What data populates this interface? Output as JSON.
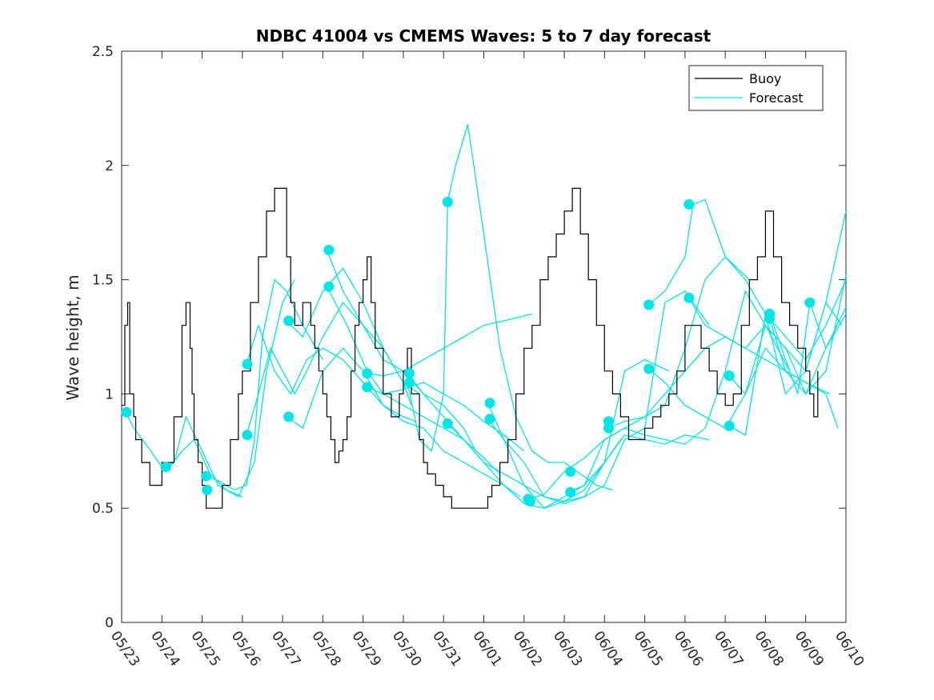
{
  "chart_data": {
    "type": "line",
    "title": "NDBC 41004 vs CMEMS Waves: 5 to 7 day forecast",
    "xlabel": "",
    "ylabel": "Wave height, m",
    "xlim": [
      0,
      18
    ],
    "ylim": [
      0,
      2.5
    ],
    "x_tick_labels": [
      "05/23",
      "05/24",
      "05/25",
      "05/26",
      "05/27",
      "05/28",
      "05/29",
      "05/30",
      "05/31",
      "06/01",
      "06/02",
      "06/03",
      "06/04",
      "06/05",
      "06/06",
      "06/07",
      "06/08",
      "06/09",
      "06/10"
    ],
    "y_ticks": [
      0,
      0.5,
      1,
      1.5,
      2,
      2.5
    ],
    "y_tick_labels": [
      "0",
      "0.5",
      "1",
      "1.5",
      "2",
      "2.5"
    ],
    "legend": {
      "position": "top-right",
      "entries": [
        "Buoy",
        "Forecast"
      ]
    },
    "colors": {
      "buoy": "#000000",
      "forecast": "#00e5e5"
    },
    "grid": false,
    "series": [
      {
        "name": "Buoy",
        "x": [
          0,
          0.08,
          0.15,
          0.2,
          0.3,
          0.35,
          0.5,
          0.7,
          0.9,
          1.0,
          1.1,
          1.3,
          1.5,
          1.6,
          1.7,
          1.75,
          1.8,
          1.9,
          2.0,
          2.1,
          2.3,
          2.45,
          2.5,
          2.6,
          2.7,
          2.9,
          3.0,
          3.2,
          3.4,
          3.6,
          3.8,
          4.0,
          4.1,
          4.2,
          4.3,
          4.5,
          4.7,
          4.8,
          4.9,
          5.0,
          5.1,
          5.2,
          5.3,
          5.35,
          5.4,
          5.5,
          5.6,
          5.7,
          5.8,
          5.9,
          6.0,
          6.1,
          6.2,
          6.3,
          6.5,
          6.7,
          6.9,
          7.0,
          7.1,
          7.2,
          7.4,
          7.5,
          7.6,
          7.8,
          8.0,
          8.2,
          8.4,
          8.6,
          8.8,
          9.0,
          9.1,
          9.2,
          9.4,
          9.6,
          9.8,
          10.0,
          10.2,
          10.4,
          10.6,
          10.8,
          11.0,
          11.2,
          11.4,
          11.6,
          11.8,
          12.0,
          12.2,
          12.4,
          12.6,
          12.8,
          13.0,
          13.2,
          13.4,
          13.6,
          13.8,
          14.0,
          14.2,
          14.4,
          14.6,
          14.8,
          15.0,
          15.2,
          15.4,
          15.6,
          15.8,
          16.0,
          16.2,
          16.4,
          16.6,
          16.8,
          17.0,
          17.1,
          17.2,
          17.3
        ],
        "values": [
          0.95,
          1.3,
          1.4,
          1.0,
          0.9,
          0.8,
          0.7,
          0.6,
          0.6,
          0.7,
          0.7,
          0.9,
          1.3,
          1.4,
          1.2,
          1.0,
          0.8,
          0.7,
          0.6,
          0.5,
          0.5,
          0.5,
          0.6,
          0.6,
          0.8,
          1.0,
          1.1,
          1.4,
          1.6,
          1.8,
          1.9,
          1.9,
          1.6,
          1.4,
          1.3,
          1.4,
          1.3,
          1.2,
          1.1,
          1.0,
          0.9,
          0.8,
          0.7,
          0.7,
          0.75,
          0.8,
          0.9,
          1.1,
          1.3,
          1.4,
          1.5,
          1.6,
          1.4,
          1.2,
          1.0,
          0.9,
          1.0,
          1.1,
          1.2,
          1.0,
          0.8,
          0.7,
          0.65,
          0.6,
          0.55,
          0.5,
          0.5,
          0.5,
          0.5,
          0.5,
          0.55,
          0.6,
          0.7,
          0.8,
          1.0,
          1.2,
          1.3,
          1.5,
          1.6,
          1.7,
          1.8,
          1.9,
          1.7,
          1.5,
          1.3,
          1.1,
          1.0,
          0.9,
          0.8,
          0.8,
          0.85,
          0.9,
          0.95,
          1.0,
          1.1,
          1.3,
          1.3,
          1.2,
          1.1,
          1.0,
          0.95,
          1.0,
          1.3,
          1.5,
          1.6,
          1.8,
          1.6,
          1.4,
          1.3,
          1.2,
          1.1,
          1.0,
          0.9,
          1.1
        ]
      },
      {
        "name": "Forecast",
        "segments": [
          {
            "x": [
              0.1,
              0.3,
              0.6,
              1.0,
              1.2,
              1.5,
              1.8,
              2.2,
              2.6,
              3.0
            ],
            "values": [
              0.92,
              0.85,
              0.78,
              0.68,
              0.68,
              0.75,
              0.8,
              0.65,
              0.58,
              0.55
            ]
          },
          {
            "x": [
              1.1,
              1.3,
              1.6,
              2.0,
              2.4,
              2.9,
              3.3,
              3.6,
              4.0,
              4.3
            ],
            "values": [
              0.68,
              0.7,
              0.9,
              0.75,
              0.6,
              0.55,
              0.7,
              1.1,
              1.4,
              1.5
            ]
          },
          {
            "x": [
              2.1,
              2.4,
              2.8,
              3.1,
              3.3,
              3.5,
              3.8,
              4.1,
              4.5,
              5.0
            ],
            "values": [
              0.64,
              0.62,
              0.58,
              0.6,
              0.8,
              1.25,
              1.5,
              1.45,
              1.3,
              1.15
            ]
          },
          {
            "x": [
              3.1,
              3.4,
              3.7,
              4.0,
              4.3,
              4.6,
              5.0,
              5.5,
              6.0,
              6.5,
              7.0,
              7.2
            ],
            "values": [
              0.82,
              1.0,
              1.2,
              1.1,
              1.0,
              1.1,
              1.25,
              1.4,
              1.3,
              1.2,
              1.05,
              0.95
            ]
          },
          {
            "x": [
              3.1,
              3.4,
              3.8,
              4.2,
              4.6,
              5.0,
              5.5,
              6.0,
              6.5,
              7.0,
              7.3
            ],
            "values": [
              1.13,
              1.3,
              1.1,
              1.0,
              1.15,
              1.2,
              1.15,
              1.05,
              0.95,
              0.9,
              0.88
            ]
          },
          {
            "x": [
              4.1,
              4.5,
              5.0,
              5.5,
              6.0,
              6.5,
              7.0,
              7.5,
              8.0,
              8.5,
              9.0,
              9.5,
              9.9
            ],
            "values": [
              0.9,
              0.85,
              1.1,
              1.2,
              1.1,
              0.95,
              0.88,
              0.85,
              0.75,
              0.7,
              0.65,
              0.6,
              0.55
            ]
          },
          {
            "x": [
              4.1,
              4.5,
              5.0,
              5.5,
              6.0,
              6.5,
              7.0,
              7.4
            ],
            "values": [
              1.32,
              1.25,
              1.45,
              1.55,
              1.4,
              1.2,
              1.05,
              1.0
            ]
          },
          {
            "x": [
              5.1,
              5.5,
              6.0,
              6.5,
              7.0,
              7.5,
              8.0,
              8.5,
              8.8
            ],
            "values": [
              1.63,
              1.45,
              1.3,
              1.15,
              1.1,
              1.0,
              0.95,
              0.85,
              0.75
            ]
          },
          {
            "x": [
              5.1,
              5.6,
              6.1,
              6.5,
              7.0,
              7.5,
              8.0,
              8.5,
              9.0,
              9.4
            ],
            "values": [
              1.47,
              1.3,
              1.1,
              1.0,
              0.95,
              0.9,
              0.85,
              0.8,
              0.72,
              0.65
            ]
          },
          {
            "x": [
              6.1,
              6.5,
              7.0,
              7.5,
              8.0,
              8.5,
              9.0,
              9.5,
              10.0
            ],
            "values": [
              1.03,
              1.0,
              1.02,
              1.05,
              1.0,
              0.95,
              0.88,
              0.82,
              0.75
            ]
          },
          {
            "x": [
              6.1,
              6.5,
              7.0,
              7.5,
              8.0,
              8.5,
              9.0,
              9.5,
              10.2
            ],
            "values": [
              1.09,
              1.08,
              1.1,
              1.15,
              1.2,
              1.25,
              1.3,
              1.32,
              1.35
            ]
          },
          {
            "x": [
              7.1,
              7.4,
              7.7,
              8.0,
              8.1,
              8.3,
              8.6,
              9.0,
              9.4,
              9.8,
              10.2,
              10.6,
              11.0,
              11.4,
              11.8,
              12.2
            ],
            "values": [
              1.05,
              0.8,
              0.75,
              1.0,
              1.84,
              2.0,
              2.18,
              1.7,
              1.2,
              0.9,
              0.75,
              0.7,
              0.7,
              0.65,
              0.6,
              0.58
            ]
          },
          {
            "x": [
              7.1,
              7.5,
              8.0,
              8.5,
              9.0,
              9.5,
              10.0,
              10.5,
              11.0,
              11.5,
              12.0,
              12.4
            ],
            "values": [
              1.09,
              1.0,
              0.9,
              0.8,
              0.7,
              0.6,
              0.52,
              0.5,
              0.55,
              0.6,
              0.7,
              0.8
            ]
          },
          {
            "x": [
              8.1,
              8.5,
              9.0,
              9.5,
              10.0,
              10.5,
              11.0,
              11.5,
              12.0,
              12.5,
              13.0,
              13.6
            ],
            "values": [
              0.87,
              0.8,
              0.7,
              0.65,
              0.6,
              0.55,
              0.53,
              0.55,
              0.7,
              1.1,
              1.15,
              1.1
            ]
          },
          {
            "x": [
              9.1,
              9.5,
              10.0,
              10.5,
              11.0,
              11.5,
              12.0,
              12.5,
              13.0,
              13.5,
              14.0,
              14.6
            ],
            "values": [
              0.96,
              0.8,
              0.7,
              0.55,
              0.52,
              0.55,
              0.6,
              0.8,
              0.85,
              1.4,
              1.45,
              1.3
            ]
          },
          {
            "x": [
              9.1,
              9.5,
              10.0,
              10.5,
              11.0,
              11.5,
              12.0,
              12.5,
              13.0,
              13.5,
              14.0,
              14.6
            ],
            "values": [
              0.89,
              0.8,
              0.6,
              0.5,
              0.53,
              0.58,
              0.7,
              0.82,
              0.8,
              0.78,
              0.82,
              0.8
            ]
          },
          {
            "x": [
              10.1,
              10.5,
              11.0,
              11.5,
              12.0,
              12.5,
              13.0,
              13.5,
              14.0,
              14.5,
              15.0,
              15.6
            ],
            "values": [
              0.54,
              0.56,
              0.66,
              0.72,
              0.8,
              0.85,
              0.9,
              0.95,
              1.2,
              1.5,
              1.6,
              1.5
            ]
          },
          {
            "x": [
              11.1,
              11.5,
              12.0,
              12.5,
              13.0,
              13.5,
              14.0,
              14.5,
              15.0,
              15.5,
              16.0,
              16.6
            ],
            "values": [
              0.57,
              0.6,
              0.8,
              0.85,
              0.82,
              0.8,
              0.78,
              0.85,
              1.1,
              1.45,
              1.3,
              1.1
            ]
          },
          {
            "x": [
              12.1,
              12.5,
              13.0,
              13.5,
              14.0,
              14.5,
              15.0,
              15.5,
              16.0,
              16.5,
              17.0,
              17.6
            ],
            "values": [
              0.85,
              0.88,
              0.9,
              1.0,
              1.1,
              1.2,
              1.25,
              1.2,
              1.15,
              1.1,
              1.05,
              1.0
            ]
          },
          {
            "x": [
              13.1,
              13.5,
              14.0,
              14.2,
              14.5,
              15.0,
              15.5,
              16.0,
              16.5,
              17.0,
              17.5,
              18.0
            ],
            "values": [
              1.39,
              1.45,
              1.6,
              1.83,
              1.85,
              1.6,
              1.5,
              1.35,
              1.25,
              1.15,
              1.3,
              1.5
            ]
          },
          {
            "x": [
              13.1,
              13.5,
              14.0,
              14.5,
              15.0,
              15.5,
              16.0,
              16.5,
              17.0,
              17.5,
              18.0
            ],
            "values": [
              1.11,
              1.05,
              0.95,
              0.9,
              0.85,
              1.0,
              1.2,
              1.1,
              1.0,
              1.2,
              1.38
            ]
          },
          {
            "x": [
              14.1,
              14.5,
              15.0,
              15.5,
              16.0,
              16.5,
              17.0,
              17.5,
              18.0
            ],
            "values": [
              1.42,
              1.3,
              1.25,
              1.2,
              1.3,
              1.2,
              1.0,
              1.1,
              1.52
            ]
          },
          {
            "x": [
              15.1,
              15.5,
              16.0,
              16.5,
              17.0,
              17.5,
              18.0
            ],
            "values": [
              1.08,
              1.0,
              1.3,
              1.2,
              1.1,
              1.4,
              1.8
            ]
          },
          {
            "x": [
              15.1,
              15.5,
              16.0,
              16.5,
              17.0,
              17.5,
              17.9
            ],
            "values": [
              0.86,
              0.82,
              1.35,
              1.0,
              1.1,
              1.4,
              1.3
            ]
          },
          {
            "x": [
              16.1,
              16.5,
              17.0,
              17.5,
              17.8
            ],
            "values": [
              1.33,
              1.1,
              1.05,
              1.0,
              0.85
            ]
          },
          {
            "x": [
              16.1,
              16.4,
              16.8,
              17.1,
              17.5,
              18.0
            ],
            "values": [
              1.35,
              1.2,
              1.0,
              1.4,
              1.2,
              1.35
            ]
          }
        ],
        "markers": [
          {
            "x": 0.12,
            "y": 0.92
          },
          {
            "x": 1.1,
            "y": 0.68
          },
          {
            "x": 2.1,
            "y": 0.64
          },
          {
            "x": 2.12,
            "y": 0.58
          },
          {
            "x": 3.12,
            "y": 1.13
          },
          {
            "x": 3.12,
            "y": 0.82
          },
          {
            "x": 4.15,
            "y": 1.32
          },
          {
            "x": 4.15,
            "y": 0.9
          },
          {
            "x": 5.15,
            "y": 1.63
          },
          {
            "x": 5.15,
            "y": 1.47
          },
          {
            "x": 6.1,
            "y": 1.09
          },
          {
            "x": 6.1,
            "y": 1.03
          },
          {
            "x": 7.15,
            "y": 1.09
          },
          {
            "x": 7.15,
            "y": 1.05
          },
          {
            "x": 8.1,
            "y": 1.84
          },
          {
            "x": 8.1,
            "y": 0.87
          },
          {
            "x": 9.15,
            "y": 0.96
          },
          {
            "x": 9.15,
            "y": 0.89
          },
          {
            "x": 10.1,
            "y": 0.54
          },
          {
            "x": 10.15,
            "y": 0.53
          },
          {
            "x": 11.15,
            "y": 0.66
          },
          {
            "x": 11.15,
            "y": 0.57
          },
          {
            "x": 12.1,
            "y": 0.88
          },
          {
            "x": 12.1,
            "y": 0.85
          },
          {
            "x": 13.1,
            "y": 1.39
          },
          {
            "x": 13.1,
            "y": 1.11
          },
          {
            "x": 14.1,
            "y": 1.83
          },
          {
            "x": 14.1,
            "y": 1.42
          },
          {
            "x": 15.1,
            "y": 1.08
          },
          {
            "x": 15.1,
            "y": 0.86
          },
          {
            "x": 16.1,
            "y": 1.35
          },
          {
            "x": 16.1,
            "y": 1.33
          },
          {
            "x": 17.1,
            "y": 1.4
          }
        ]
      }
    ]
  }
}
